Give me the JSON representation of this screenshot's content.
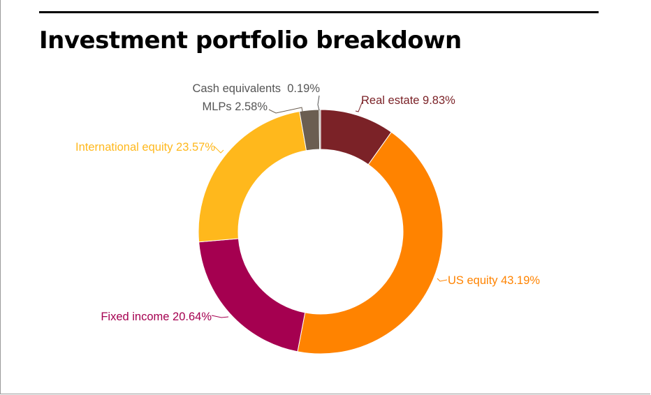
{
  "chart_data": {
    "type": "pie",
    "style": "donut",
    "title": "Investment portfolio breakdown",
    "slices": [
      {
        "label": "Real estate",
        "display": "Real estate 9.83%",
        "value": 9.83,
        "color": "#7b2227"
      },
      {
        "label": "US equity",
        "display": "US equity 43.19%",
        "value": 43.19,
        "color": "#ff8300"
      },
      {
        "label": "Fixed income",
        "display": "Fixed income 20.64%",
        "value": 20.64,
        "color": "#a50050"
      },
      {
        "label": "International equity",
        "display": "International equity 23.57%",
        "value": 23.57,
        "color": "#ffb81c"
      },
      {
        "label": "MLPs",
        "display": "MLPs 2.58%",
        "value": 2.58,
        "color": "#6b5e51"
      },
      {
        "label": "Cash equivalents",
        "display": "Cash equivalents  0.19%",
        "value": 0.19,
        "color": "#a59c94"
      }
    ],
    "legend": "none (direct labels)"
  }
}
